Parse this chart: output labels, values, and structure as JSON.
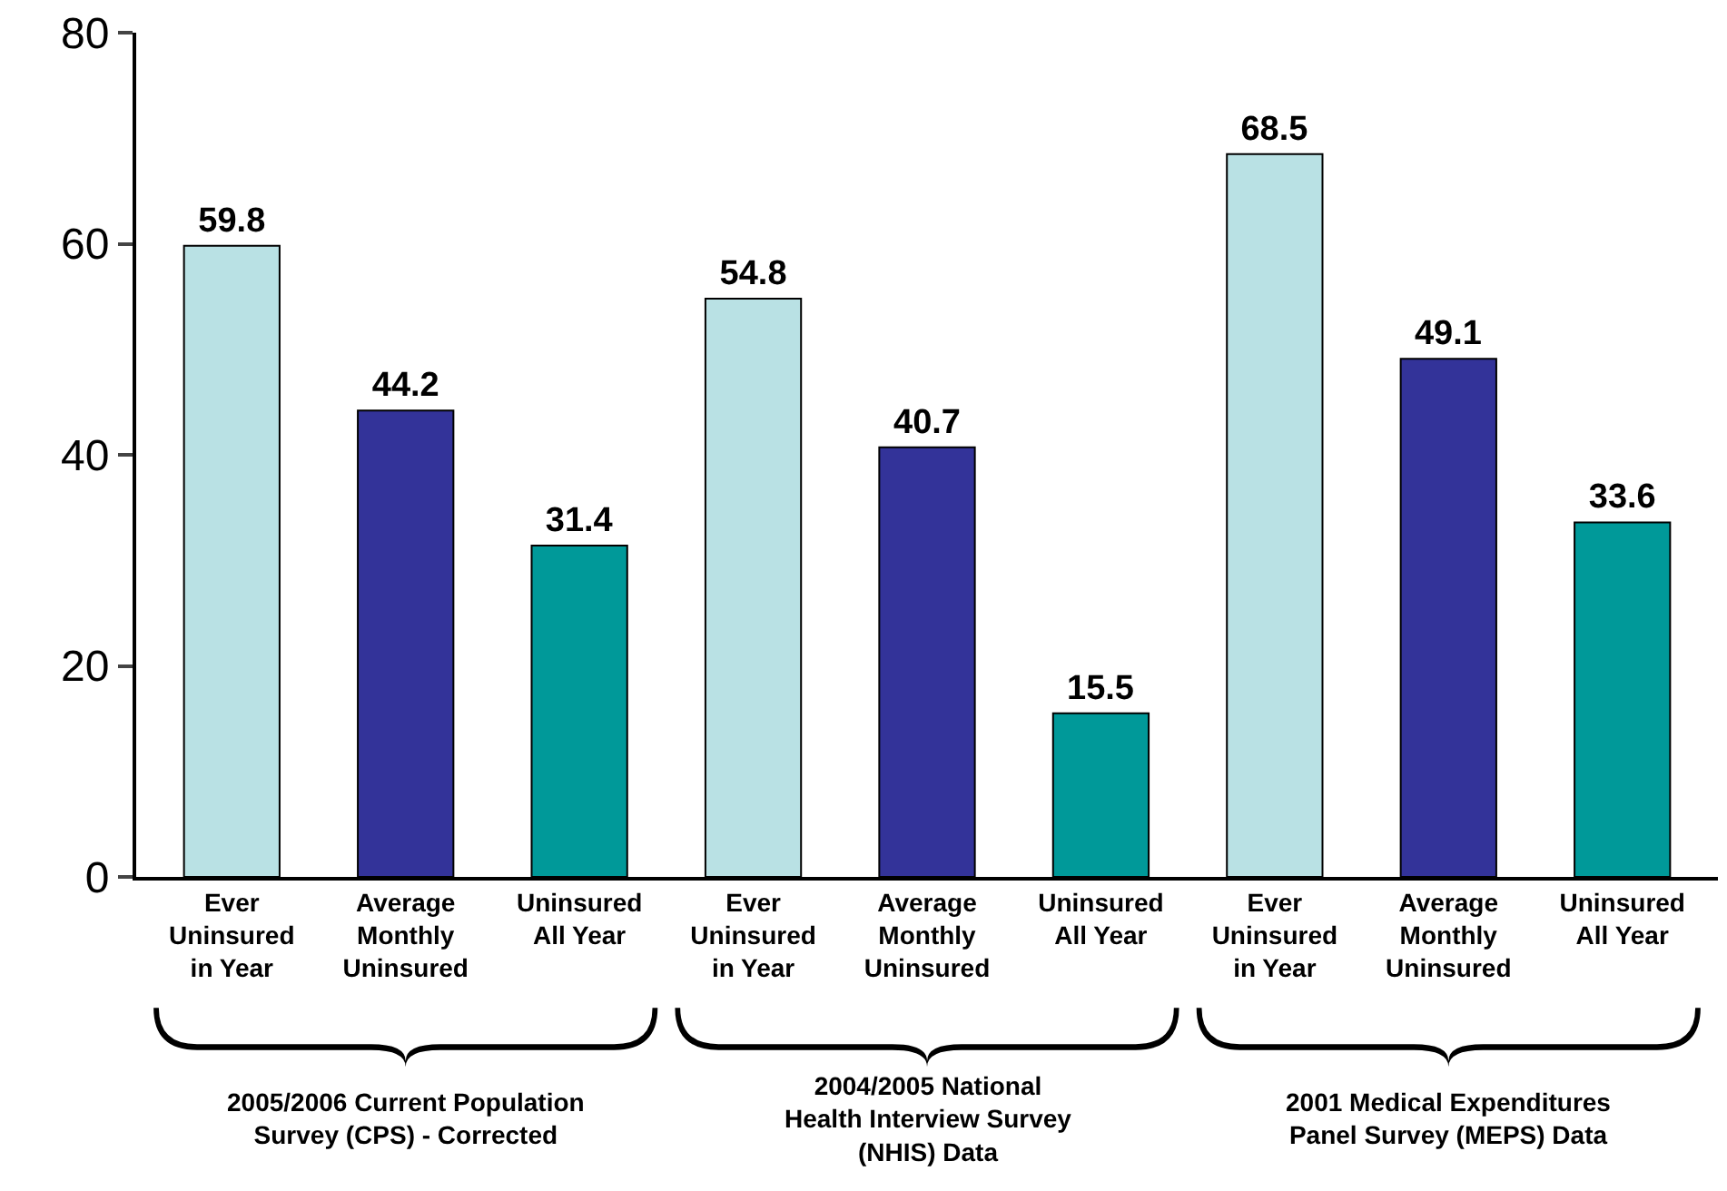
{
  "chart_data": {
    "type": "bar",
    "categories": [
      "Ever\nUninsured\nin Year",
      "Average\nMonthly\nUninsured",
      "Uninsured\nAll Year",
      "Ever\nUninsured\nin Year",
      "Average\nMonthly\nUninsured",
      "Uninsured\nAll Year",
      "Ever\nUninsured\nin Year",
      "Average\nMonthly\nUninsured",
      "Uninsured\nAll Year"
    ],
    "values": [
      59.8,
      44.2,
      31.4,
      54.8,
      40.7,
      15.5,
      68.5,
      49.1,
      33.6
    ],
    "colors": [
      "#b9e1e4",
      "#333399",
      "#009999",
      "#b9e1e4",
      "#333399",
      "#009999",
      "#b9e1e4",
      "#333399",
      "#009999"
    ],
    "ylim": [
      0,
      80
    ],
    "yticks": [
      0,
      20,
      40,
      60,
      80
    ],
    "data_labels": true,
    "annotations": [
      "2005/2006 Current Population\nSurvey (CPS) - Corrected",
      "2004/2005 National\nHealth Interview Survey\n(NHIS) Data",
      "2001 Medical Expenditures\nPanel Survey (MEPS) Data"
    ]
  }
}
